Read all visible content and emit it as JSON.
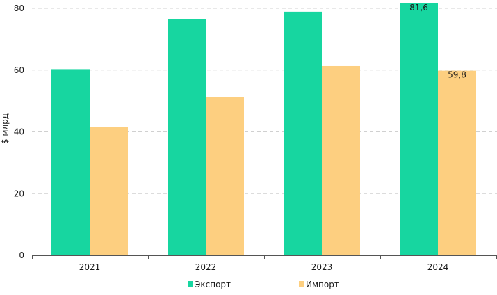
{
  "chart_data": {
    "type": "bar",
    "title": "",
    "xlabel": "",
    "ylabel": "$ млрд",
    "ylim": [
      0,
      80
    ],
    "yticks": [
      0,
      20,
      40,
      60,
      80
    ],
    "grid": true,
    "legend_position": "bottom-center",
    "categories": [
      "2021",
      "2022",
      "2023",
      "2024"
    ],
    "series": [
      {
        "name": "Экспорт",
        "color": "#17d6a0",
        "values": [
          60.3,
          76.4,
          78.9,
          81.6
        ],
        "data_labels": [
          null,
          null,
          null,
          "81,6"
        ]
      },
      {
        "name": "Импорт",
        "color": "#fdcf80",
        "values": [
          41.5,
          51.2,
          61.3,
          59.8
        ],
        "data_labels": [
          null,
          null,
          null,
          "59,8"
        ]
      }
    ]
  }
}
